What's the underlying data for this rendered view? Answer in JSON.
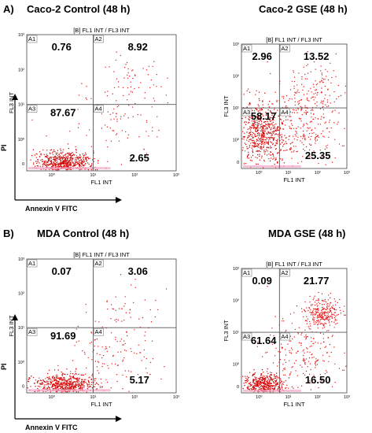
{
  "panels": [
    {
      "label": "A)"
    },
    {
      "label": "B)"
    }
  ],
  "axis_arrows": [
    {
      "x_label": "Annexin V FITC",
      "y_label": "PI"
    },
    {
      "x_label": "Annexin V FITC",
      "y_label": "PI"
    }
  ],
  "colors": {
    "dots": "#e81c1c",
    "dense": "#cc0000",
    "base": "#f2a6c8",
    "gate": "#555555"
  },
  "chart_data": [
    {
      "type": "scatter",
      "title": "Caco-2 Control (48 h)",
      "subtitle": "[B] FL1 INT / FL3 INT",
      "xlabel": "FL1 INT",
      "ylabel": "FL3 INT",
      "x_ticks": [
        "10⁰",
        "10¹",
        "10²",
        "10³"
      ],
      "y_ticks": [
        "10³",
        "10²",
        "10¹",
        "10⁰",
        "0"
      ],
      "quadrants": [
        {
          "id": "A1",
          "value": "0.76"
        },
        {
          "id": "A2",
          "value": "8.92"
        },
        {
          "id": "A3",
          "value": "87.67"
        },
        {
          "id": "A4",
          "value": "2.65"
        }
      ],
      "x_gate": 10,
      "y_gate": 10,
      "clusters": [
        {
          "x": 2.0,
          "y": 0.0,
          "sx": 0.35,
          "sy": 0.18,
          "n": 700
        },
        {
          "x": 40,
          "y": 3,
          "sx": 0.55,
          "sy": 0.5,
          "n": 80
        },
        {
          "x": 100,
          "y": 40,
          "sx": 0.4,
          "sy": 0.4,
          "n": 60
        }
      ]
    },
    {
      "type": "scatter",
      "title": "Caco-2 GSE (48 h)",
      "subtitle": "[B] FL1 INT / FL3 INT",
      "xlabel": "FL1 INT",
      "ylabel": "FL3 INT",
      "x_ticks": [
        "10⁰",
        "10¹",
        "10²",
        "10³"
      ],
      "y_ticks": [
        "10³",
        "10²",
        "10¹",
        "10⁰",
        "0"
      ],
      "quadrants": [
        {
          "id": "A1",
          "value": "2.96"
        },
        {
          "id": "A2",
          "value": "13.52"
        },
        {
          "id": "A3",
          "value": "58.17"
        },
        {
          "id": "A4",
          "value": "25.35"
        }
      ],
      "x_gate": 5,
      "y_gate": 10,
      "clusters": [
        {
          "x": 1.2,
          "y": 1.5,
          "sx": 0.4,
          "sy": 0.5,
          "n": 600
        },
        {
          "x": 30,
          "y": 2,
          "sx": 0.6,
          "sy": 0.6,
          "n": 260
        },
        {
          "x": 80,
          "y": 30,
          "sx": 0.5,
          "sy": 0.5,
          "n": 140
        }
      ]
    },
    {
      "type": "scatter",
      "title": "MDA Control (48 h)",
      "subtitle": "[B] FL1 INT / FL3 INT",
      "xlabel": "FL1 INT",
      "ylabel": "FL3 INT",
      "x_ticks": [
        "10⁰",
        "10¹",
        "10²",
        "10³"
      ],
      "y_ticks": [
        "10³",
        "10²",
        "10¹",
        "10⁰",
        "0"
      ],
      "quadrants": [
        {
          "id": "A1",
          "value": "0.07"
        },
        {
          "id": "A2",
          "value": "3.06"
        },
        {
          "id": "A3",
          "value": "91.69"
        },
        {
          "id": "A4",
          "value": "5.17"
        }
      ],
      "x_gate": 10,
      "y_gate": 10,
      "clusters": [
        {
          "x": 2.0,
          "y": 0.0,
          "sx": 0.35,
          "sy": 0.18,
          "n": 700
        },
        {
          "x": 30,
          "y": 2,
          "sx": 0.55,
          "sy": 0.5,
          "n": 120
        },
        {
          "x": 100,
          "y": 40,
          "sx": 0.4,
          "sy": 0.4,
          "n": 40
        }
      ]
    },
    {
      "type": "scatter",
      "title": "MDA GSE (48 h)",
      "subtitle": "[B] FL1 INT / FL3 INT",
      "xlabel": "FL1 INT",
      "ylabel": "FL3 INT",
      "x_ticks": [
        "10⁰",
        "10¹",
        "10²",
        "10³"
      ],
      "y_ticks": [
        "10³",
        "10²",
        "10¹",
        "10⁰",
        "0"
      ],
      "quadrants": [
        {
          "id": "A1",
          "value": "0.09"
        },
        {
          "id": "A2",
          "value": "21.77"
        },
        {
          "id": "A3",
          "value": "61.64"
        },
        {
          "id": "A4",
          "value": "16.50"
        }
      ],
      "x_gate": 5,
      "y_gate": 10,
      "clusters": [
        {
          "x": 1.5,
          "y": 0.0,
          "sx": 0.35,
          "sy": 0.2,
          "n": 550
        },
        {
          "x": 30,
          "y": 2,
          "sx": 0.6,
          "sy": 0.6,
          "n": 220
        },
        {
          "x": 150,
          "y": 40,
          "sx": 0.3,
          "sy": 0.25,
          "n": 260
        }
      ]
    }
  ]
}
